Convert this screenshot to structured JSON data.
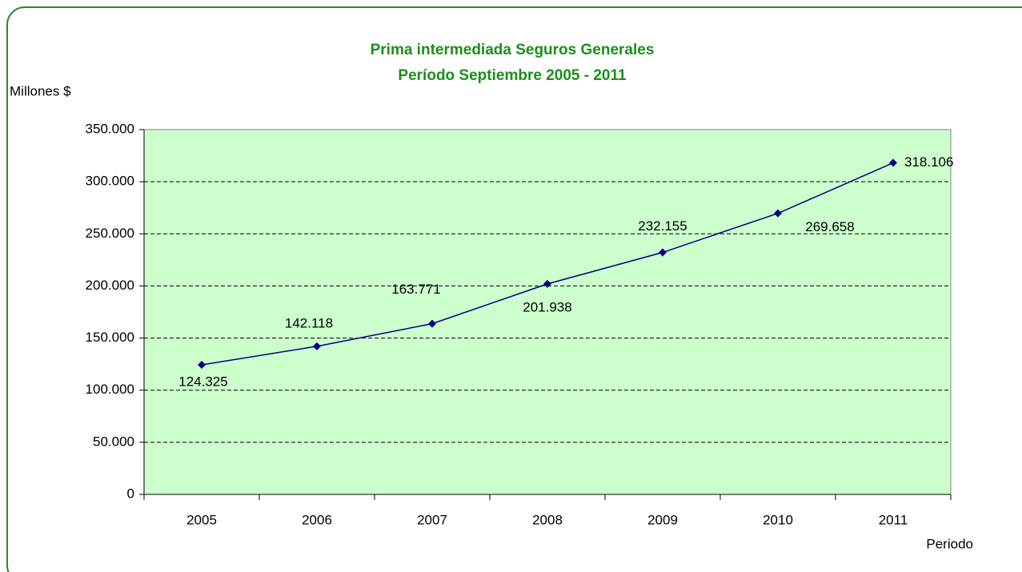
{
  "chart_data": {
    "type": "line",
    "title": "Prima intermediada  Seguros Generales",
    "subtitle": "Período Septiembre 2005 - 2011",
    "y_label": "Millones $",
    "x_label": "Periodo",
    "categories": [
      "2005",
      "2006",
      "2007",
      "2008",
      "2009",
      "2010",
      "2011"
    ],
    "series": [
      {
        "color": "#000080",
        "values": [
          124325,
          142118,
          163771,
          201938,
          232155,
          269658,
          318106
        ],
        "value_labels": [
          "124.325",
          "142.118",
          "163.771",
          "201.938",
          "232.155",
          "269.658",
          "318.106"
        ]
      }
    ],
    "ylim": [
      0,
      350000
    ],
    "yticks": [
      0,
      {
        "value": 50000,
        "label": "50.000"
      },
      {
        "value": 100000,
        "label": "100.000"
      },
      {
        "value": 150000,
        "label": "150.000"
      },
      {
        "value": 200000,
        "label": "200.000"
      },
      {
        "value": 250000,
        "label": "250.000"
      },
      {
        "value": 300000,
        "label": "300.000"
      },
      {
        "value": 350000,
        "label": "350.000"
      }
    ],
    "grid": true,
    "plot_background": "#ccffcc"
  }
}
